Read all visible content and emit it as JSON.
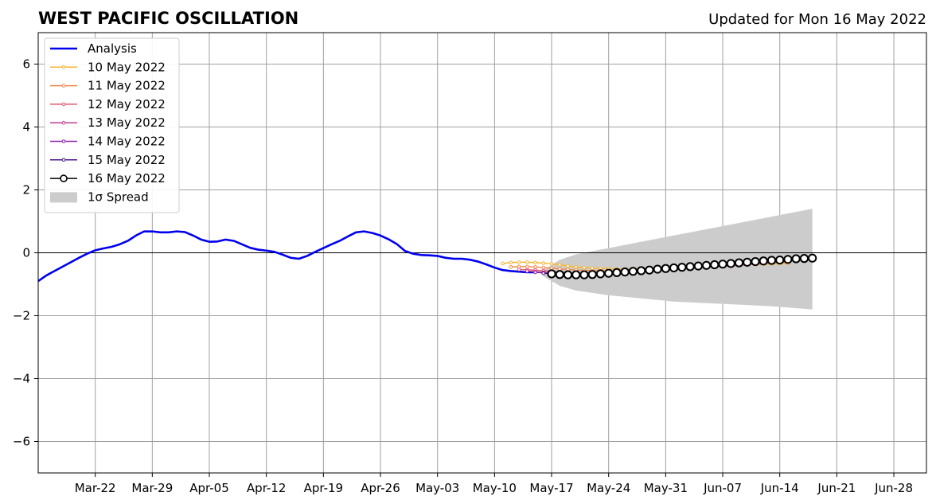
{
  "chart_data": {
    "type": "line",
    "title": "WEST PACIFIC OSCILLATION",
    "subtitle": "Updated for Mon 16 May 2022",
    "xlim": [
      "2022-03-15",
      "2022-07-02"
    ],
    "ylim": [
      -7,
      7
    ],
    "yticks": [
      -6,
      -4,
      -2,
      0,
      2,
      4,
      6
    ],
    "ytick_labels": [
      "−6",
      "−4",
      "−2",
      "0",
      "2",
      "4",
      "6"
    ],
    "xticks": [
      "2022-03-22",
      "2022-03-29",
      "2022-04-05",
      "2022-04-12",
      "2022-04-19",
      "2022-04-26",
      "2022-05-03",
      "2022-05-10",
      "2022-05-17",
      "2022-05-24",
      "2022-05-31",
      "2022-06-07",
      "2022-06-14",
      "2022-06-21",
      "2022-06-28"
    ],
    "xtick_labels": [
      "Mar-22",
      "Mar-29",
      "Apr-05",
      "Apr-12",
      "Apr-19",
      "Apr-26",
      "May-03",
      "May-10",
      "May-17",
      "May-24",
      "May-31",
      "Jun-07",
      "Jun-14",
      "Jun-21",
      "Jun-28"
    ],
    "grid": true,
    "legend_position": "top-left",
    "series": [
      {
        "name": "Analysis",
        "color": "#0000ee",
        "x": [
          "2022-03-15",
          "2022-03-16",
          "2022-03-17",
          "2022-03-18",
          "2022-03-19",
          "2022-03-20",
          "2022-03-21",
          "2022-03-22",
          "2022-03-23",
          "2022-03-24",
          "2022-03-25",
          "2022-03-26",
          "2022-03-27",
          "2022-03-28",
          "2022-03-29",
          "2022-03-30",
          "2022-03-31",
          "2022-04-01",
          "2022-04-02",
          "2022-04-03",
          "2022-04-04",
          "2022-04-05",
          "2022-04-06",
          "2022-04-07",
          "2022-04-08",
          "2022-04-09",
          "2022-04-10",
          "2022-04-11",
          "2022-04-12",
          "2022-04-13",
          "2022-04-14",
          "2022-04-15",
          "2022-04-16",
          "2022-04-17",
          "2022-04-18",
          "2022-04-19",
          "2022-04-20",
          "2022-04-21",
          "2022-04-22",
          "2022-04-23",
          "2022-04-24",
          "2022-04-25",
          "2022-04-26",
          "2022-04-27",
          "2022-04-28",
          "2022-04-29",
          "2022-04-30",
          "2022-05-01",
          "2022-05-02",
          "2022-05-03",
          "2022-05-04",
          "2022-05-05",
          "2022-05-06",
          "2022-05-07",
          "2022-05-08",
          "2022-05-09",
          "2022-05-10",
          "2022-05-11",
          "2022-05-12",
          "2022-05-13",
          "2022-05-14",
          "2022-05-15"
        ],
        "y": [
          -0.9,
          -0.72,
          -0.58,
          -0.44,
          -0.3,
          -0.16,
          -0.03,
          0.08,
          0.14,
          0.19,
          0.27,
          0.38,
          0.55,
          0.68,
          0.68,
          0.65,
          0.65,
          0.68,
          0.66,
          0.55,
          0.42,
          0.35,
          0.36,
          0.42,
          0.38,
          0.27,
          0.16,
          0.1,
          0.07,
          0.03,
          -0.06,
          -0.16,
          -0.19,
          -0.1,
          0.03,
          0.15,
          0.27,
          0.38,
          0.52,
          0.65,
          0.68,
          0.63,
          0.55,
          0.43,
          0.28,
          0.06,
          -0.03,
          -0.07,
          -0.08,
          -0.1,
          -0.16,
          -0.19,
          -0.19,
          -0.22,
          -0.28,
          -0.37,
          -0.47,
          -0.55,
          -0.58,
          -0.6,
          -0.62,
          -0.62
        ]
      },
      {
        "name": "10 May 2022",
        "color": "#f7b42c",
        "start": "2022-05-11",
        "y": [
          -0.34,
          -0.31,
          -0.3,
          -0.3,
          -0.31,
          -0.33,
          -0.35,
          -0.38,
          -0.42,
          -0.45,
          -0.47,
          -0.49,
          -0.5,
          -0.51,
          -0.52,
          -0.52,
          -0.52,
          -0.51,
          -0.5,
          -0.49,
          -0.48,
          -0.47,
          -0.46,
          -0.45,
          -0.44,
          -0.43,
          -0.42,
          -0.41,
          -0.4,
          -0.39,
          -0.38,
          -0.37,
          -0.36,
          -0.35,
          -0.34,
          -0.33
        ]
      },
      {
        "name": "11 May 2022",
        "color": "#f08a4b",
        "start": "2022-05-12",
        "y": [
          -0.45,
          -0.44,
          -0.44,
          -0.45,
          -0.47,
          -0.49,
          -0.51,
          -0.53,
          -0.55,
          -0.56,
          -0.57,
          -0.57,
          -0.57,
          -0.56,
          -0.55,
          -0.54,
          -0.53,
          -0.52,
          -0.51,
          -0.5,
          -0.49,
          -0.47,
          -0.46,
          -0.45,
          -0.43,
          -0.42,
          -0.41,
          -0.39,
          -0.38,
          -0.37,
          -0.35,
          -0.34,
          -0.32,
          -0.31,
          -0.3
        ]
      },
      {
        "name": "12 May 2022",
        "color": "#e05a6f",
        "start": "2022-05-13",
        "y": [
          -0.53,
          -0.54,
          -0.55,
          -0.57,
          -0.59,
          -0.61,
          -0.63,
          -0.64,
          -0.64,
          -0.64,
          -0.63,
          -0.62,
          -0.61,
          -0.6,
          -0.59,
          -0.58,
          -0.57,
          -0.55,
          -0.54,
          -0.53,
          -0.51,
          -0.5,
          -0.48,
          -0.47,
          -0.45,
          -0.43,
          -0.42,
          -0.4,
          -0.38,
          -0.36,
          -0.34,
          -0.32,
          -0.3,
          -0.28
        ]
      },
      {
        "name": "13 May 2022",
        "color": "#c13b8f",
        "start": "2022-05-14",
        "y": [
          -0.58,
          -0.6,
          -0.62,
          -0.64,
          -0.66,
          -0.67,
          -0.68,
          -0.68,
          -0.67,
          -0.66,
          -0.65,
          -0.63,
          -0.61,
          -0.59,
          -0.57,
          -0.55,
          -0.53,
          -0.51,
          -0.49,
          -0.47,
          -0.45,
          -0.43,
          -0.41,
          -0.39,
          -0.37,
          -0.35,
          -0.33,
          -0.31,
          -0.29,
          -0.27,
          -0.25,
          -0.23,
          -0.21
        ]
      },
      {
        "name": "14 May 2022",
        "color": "#8e24aa",
        "start": "2022-05-15",
        "y": [
          -0.62,
          -0.64,
          -0.66,
          -0.68,
          -0.69,
          -0.7,
          -0.7,
          -0.69,
          -0.68,
          -0.66,
          -0.64,
          -0.62,
          -0.6,
          -0.58,
          -0.56,
          -0.54,
          -0.52,
          -0.5,
          -0.48,
          -0.46,
          -0.44,
          -0.42,
          -0.4,
          -0.38,
          -0.36,
          -0.34,
          -0.32,
          -0.3,
          -0.28,
          -0.26,
          -0.24,
          -0.22
        ]
      },
      {
        "name": "15 May 2022",
        "color": "#4a148c",
        "start": "2022-05-16",
        "y": [
          -0.65,
          -0.67,
          -0.69,
          -0.7,
          -0.71,
          -0.71,
          -0.7,
          -0.69,
          -0.67,
          -0.65,
          -0.63,
          -0.61,
          -0.59,
          -0.57,
          -0.55,
          -0.53,
          -0.51,
          -0.49,
          -0.47,
          -0.45,
          -0.43,
          -0.41,
          -0.39,
          -0.37,
          -0.35,
          -0.33,
          -0.31,
          -0.29,
          -0.27,
          -0.25,
          -0.23
        ]
      },
      {
        "name": "16 May 2022",
        "color": "#000000",
        "start": "2022-05-17",
        "y": [
          -0.67,
          -0.69,
          -0.7,
          -0.7,
          -0.7,
          -0.69,
          -0.67,
          -0.65,
          -0.63,
          -0.61,
          -0.59,
          -0.57,
          -0.55,
          -0.52,
          -0.5,
          -0.48,
          -0.46,
          -0.44,
          -0.42,
          -0.4,
          -0.38,
          -0.36,
          -0.34,
          -0.32,
          -0.3,
          -0.28,
          -0.26,
          -0.24,
          -0.23,
          -0.21,
          -0.19,
          -0.18,
          -0.17
        ]
      }
    ],
    "spread": {
      "name": "1σ Spread",
      "color": "#cccccc",
      "x": [
        "2022-05-16",
        "2022-05-18",
        "2022-05-20",
        "2022-05-24",
        "2022-05-28",
        "2022-06-01",
        "2022-06-05",
        "2022-06-09",
        "2022-06-13",
        "2022-06-18"
      ],
      "upper": [
        -0.55,
        -0.22,
        -0.05,
        0.15,
        0.35,
        0.55,
        0.75,
        0.95,
        1.15,
        1.4
      ],
      "lower": [
        -0.75,
        -1.05,
        -1.2,
        -1.35,
        -1.45,
        -1.55,
        -1.6,
        -1.65,
        -1.7,
        -1.8
      ]
    }
  }
}
